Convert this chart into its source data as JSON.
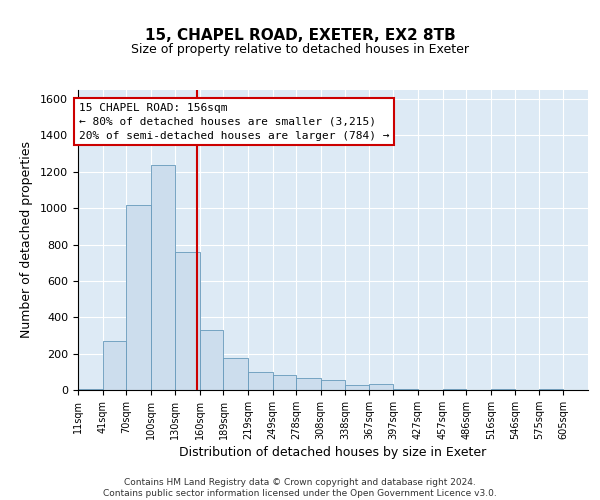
{
  "title": "15, CHAPEL ROAD, EXETER, EX2 8TB",
  "subtitle": "Size of property relative to detached houses in Exeter",
  "xlabel": "Distribution of detached houses by size in Exeter",
  "ylabel": "Number of detached properties",
  "footer_line1": "Contains HM Land Registry data © Crown copyright and database right 2024.",
  "footer_line2": "Contains public sector information licensed under the Open Government Licence v3.0.",
  "annotation_line1": "15 CHAPEL ROAD: 156sqm",
  "annotation_line2": "← 80% of detached houses are smaller (3,215)",
  "annotation_line3": "20% of semi-detached houses are larger (784) →",
  "property_size": 156,
  "bar_color": "#ccdded",
  "bar_edge_color": "#6699bb",
  "vline_color": "#cc0000",
  "background_color": "#ddeaf5",
  "annotation_box_color": "#ffffff",
  "annotation_box_edge": "#cc0000",
  "ylim": [
    0,
    1650
  ],
  "yticks": [
    0,
    200,
    400,
    600,
    800,
    1000,
    1200,
    1400,
    1600
  ],
  "bins": [
    11,
    41,
    70,
    100,
    130,
    160,
    189,
    219,
    249,
    278,
    308,
    338,
    367,
    397,
    427,
    457,
    486,
    516,
    546,
    575,
    605
  ],
  "counts": [
    5,
    270,
    1020,
    1240,
    760,
    330,
    175,
    100,
    80,
    65,
    55,
    25,
    35,
    5,
    0,
    5,
    0,
    5,
    0,
    5,
    0
  ],
  "title_fontsize": 11,
  "subtitle_fontsize": 9,
  "xlabel_fontsize": 9,
  "ylabel_fontsize": 9,
  "ytick_fontsize": 8,
  "xtick_fontsize": 7,
  "footer_fontsize": 6.5,
  "annotation_fontsize": 8
}
